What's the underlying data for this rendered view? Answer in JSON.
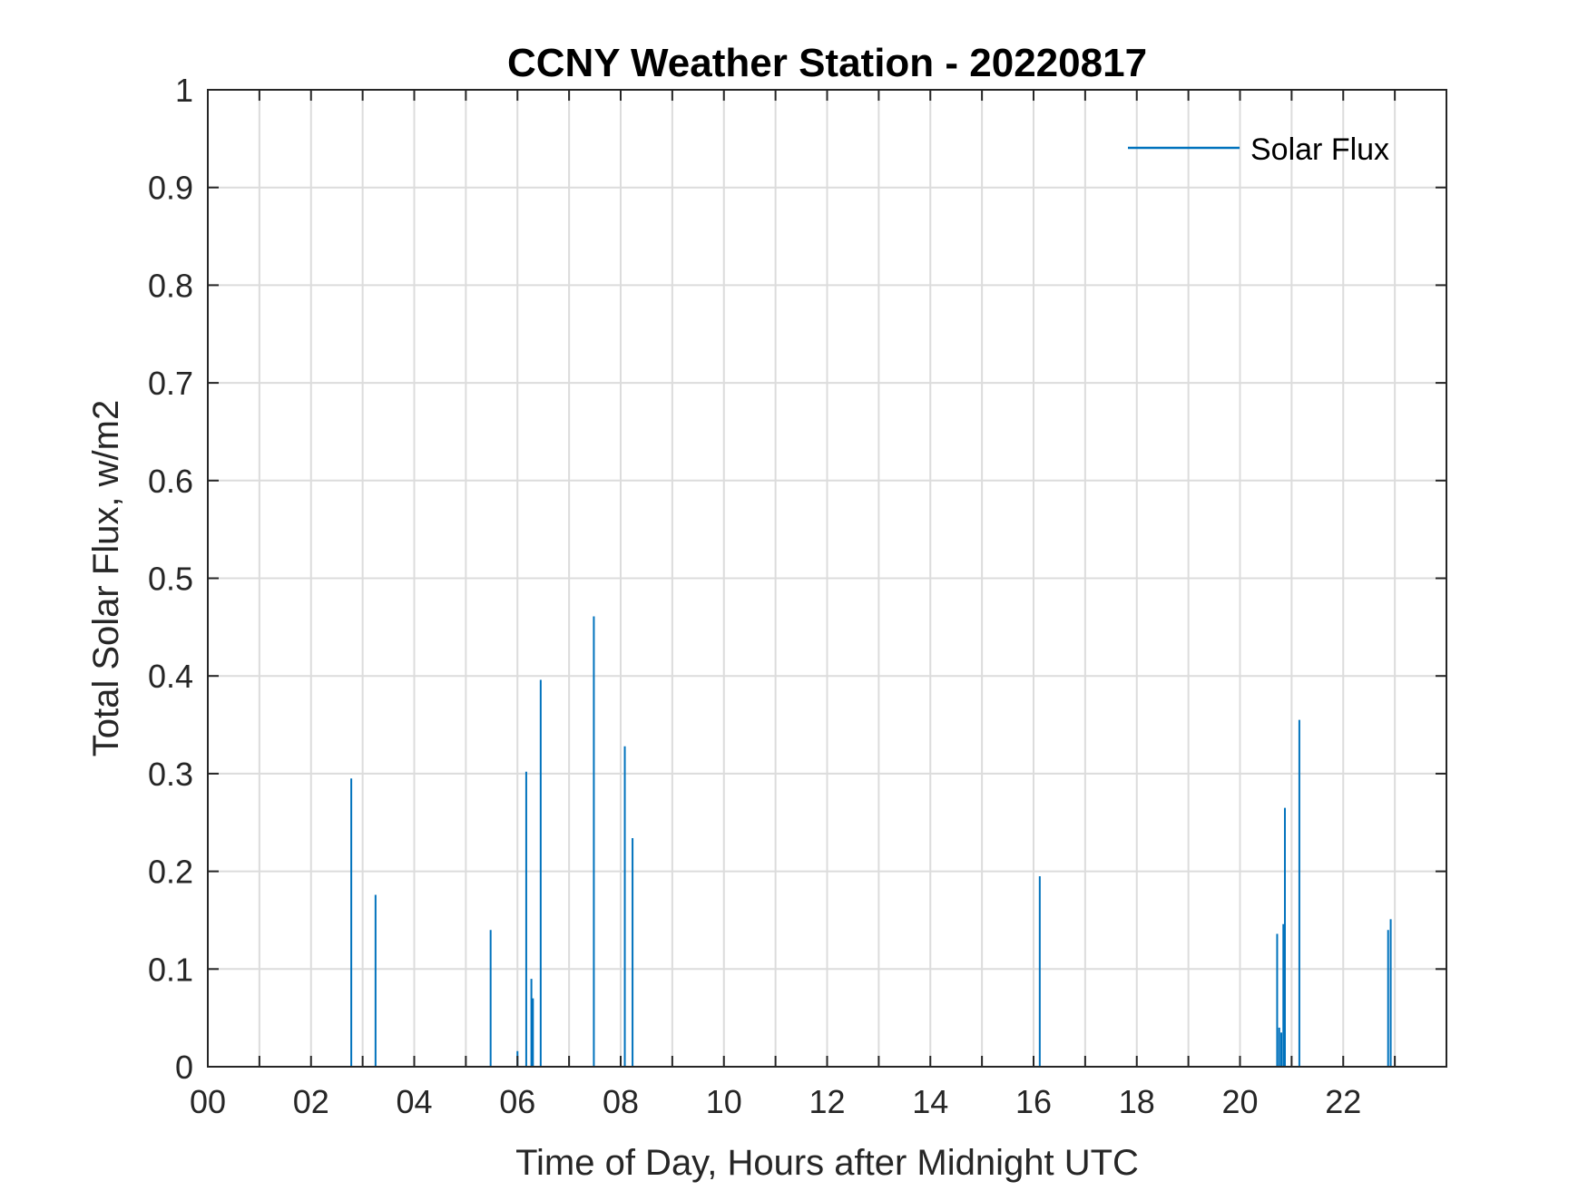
{
  "chart_data": {
    "type": "bar",
    "title": "CCNY Weather Station - 20220817",
    "xlabel": "Time of Day, Hours after Midnight UTC",
    "ylabel": "Total Solar Flux, w/m2",
    "xlim": [
      0,
      24
    ],
    "ylim": [
      0,
      1
    ],
    "xticks": [
      0,
      2,
      4,
      6,
      8,
      10,
      12,
      14,
      16,
      18,
      20,
      22
    ],
    "xtick_labels": [
      "00",
      "02",
      "04",
      "06",
      "08",
      "10",
      "12",
      "14",
      "16",
      "18",
      "20",
      "22"
    ],
    "yticks": [
      0,
      0.1,
      0.2,
      0.3,
      0.4,
      0.5,
      0.6,
      0.7,
      0.8,
      0.9,
      1
    ],
    "ytick_labels": [
      "0",
      "0.1",
      "0.2",
      "0.3",
      "0.4",
      "0.5",
      "0.6",
      "0.7",
      "0.8",
      "0.9",
      "1"
    ],
    "grid": true,
    "legend_position": "top-right",
    "series": [
      {
        "name": "Solar Flux",
        "color": "#0072BD",
        "points": [
          {
            "x": 2.78,
            "y": 0.295
          },
          {
            "x": 3.25,
            "y": 0.176
          },
          {
            "x": 5.48,
            "y": 0.14
          },
          {
            "x": 6.0,
            "y": 0.016
          },
          {
            "x": 6.17,
            "y": 0.302
          },
          {
            "x": 6.27,
            "y": 0.09
          },
          {
            "x": 6.3,
            "y": 0.07
          },
          {
            "x": 6.45,
            "y": 0.396
          },
          {
            "x": 7.48,
            "y": 0.461
          },
          {
            "x": 8.08,
            "y": 0.328
          },
          {
            "x": 8.23,
            "y": 0.234
          },
          {
            "x": 16.12,
            "y": 0.195
          },
          {
            "x": 20.72,
            "y": 0.136
          },
          {
            "x": 20.76,
            "y": 0.04
          },
          {
            "x": 20.8,
            "y": 0.035
          },
          {
            "x": 20.84,
            "y": 0.146
          },
          {
            "x": 20.87,
            "y": 0.265
          },
          {
            "x": 21.15,
            "y": 0.355
          },
          {
            "x": 22.87,
            "y": 0.14
          },
          {
            "x": 22.92,
            "y": 0.151
          }
        ]
      }
    ]
  }
}
